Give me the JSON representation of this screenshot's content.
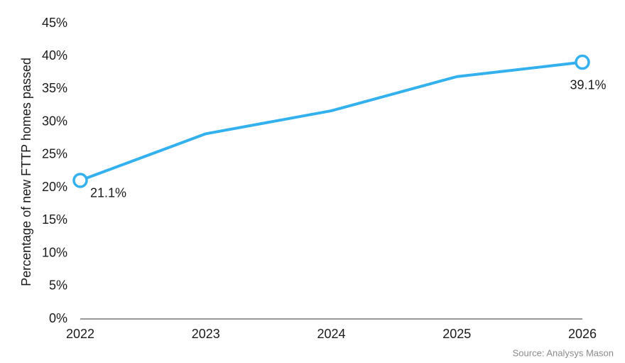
{
  "chart_data": {
    "type": "line",
    "y_label": "Percentage of new FTTP homes passed",
    "source": "Source: Analysys Mason",
    "categories": [
      "2022",
      "2023",
      "2024",
      "2025",
      "2026"
    ],
    "series": [
      {
        "name": null,
        "color": "#33b1ef",
        "values": [
          21.1,
          28.2,
          31.7,
          36.9,
          39.1
        ],
        "value_labels": [
          "21.1%",
          null,
          null,
          null,
          "39.1%"
        ]
      }
    ],
    "ylim": [
      0,
      45
    ],
    "yticks": [
      {
        "value": 0,
        "label": "0%"
      },
      {
        "value": 5,
        "label": "5%"
      },
      {
        "value": 10,
        "label": "10%"
      },
      {
        "value": 15,
        "label": "15%"
      },
      {
        "value": 20,
        "label": "20%"
      },
      {
        "value": 25,
        "label": "25%"
      },
      {
        "value": 30,
        "label": "30%"
      },
      {
        "value": 35,
        "label": "35%"
      },
      {
        "value": 40,
        "label": "40%"
      },
      {
        "value": 45,
        "label": "45%"
      }
    ],
    "grid": false
  }
}
